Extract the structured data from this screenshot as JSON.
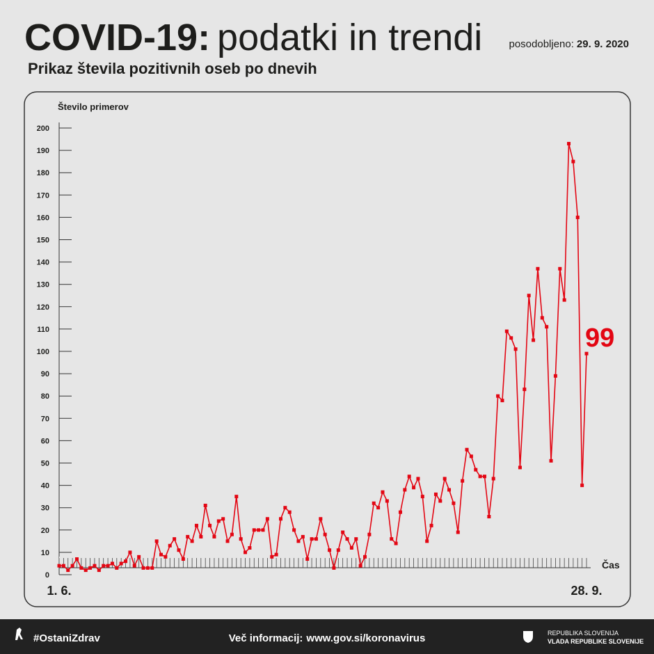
{
  "header": {
    "title_bold": "COVID-19:",
    "title_rest": "podatki in trendi",
    "updated_label": "posodobljeno:",
    "updated_date": "29. 9. 2020",
    "subtitle": "Prikaz števila pozitivnih oseb po dnevih"
  },
  "chart_data": {
    "type": "line",
    "y_label": "Število primerov",
    "x_label": "Čas",
    "color": "#e30613",
    "categories": [
      "1. 6.",
      null,
      null,
      null,
      null,
      null,
      null,
      null,
      null,
      null,
      null,
      null,
      null,
      null,
      null,
      null,
      null,
      null,
      null,
      null,
      null,
      null,
      null,
      null,
      null,
      null,
      null,
      null,
      null,
      null,
      null,
      null,
      null,
      null,
      null,
      null,
      null,
      null,
      null,
      null,
      null,
      null,
      null,
      null,
      null,
      null,
      null,
      null,
      null,
      null,
      null,
      null,
      null,
      null,
      null,
      null,
      null,
      null,
      null,
      null,
      null,
      null,
      null,
      null,
      null,
      null,
      null,
      null,
      null,
      null,
      null,
      null,
      null,
      null,
      null,
      null,
      null,
      null,
      null,
      null,
      null,
      null,
      null,
      null,
      null,
      null,
      null,
      null,
      null,
      null,
      null,
      null,
      null,
      null,
      null,
      null,
      null,
      null,
      null,
      null,
      null,
      null,
      null,
      null,
      null,
      null,
      null,
      null,
      null,
      null,
      null,
      null,
      null,
      null,
      null,
      null,
      null,
      null,
      null,
      "28. 9."
    ],
    "values": [
      4,
      4,
      2,
      4,
      7,
      3,
      2,
      3,
      4,
      2,
      4,
      4,
      5,
      3,
      5,
      6,
      10,
      4,
      8,
      3,
      3,
      3,
      15,
      9,
      8,
      13,
      16,
      11,
      7,
      17,
      15,
      22,
      17,
      31,
      22,
      17,
      24,
      25,
      15,
      18,
      35,
      16,
      10,
      12,
      20,
      20,
      20,
      25,
      8,
      9,
      25,
      30,
      28,
      20,
      15,
      17,
      7,
      16,
      16,
      25,
      18,
      11,
      3,
      11,
      19,
      16,
      12,
      16,
      4,
      8,
      18,
      32,
      30,
      37,
      33,
      16,
      14,
      28,
      38,
      44,
      39,
      43,
      35,
      15,
      22,
      36,
      33,
      43,
      38,
      32,
      19,
      42,
      56,
      53,
      47,
      44,
      44,
      26,
      43,
      80,
      78,
      109,
      106,
      101,
      48,
      83,
      125,
      105,
      137,
      115,
      111,
      51,
      89,
      137,
      123,
      193,
      185,
      160,
      40,
      99
    ],
    "ylim": [
      0,
      200
    ],
    "yticks": [
      0,
      10,
      20,
      30,
      40,
      50,
      60,
      70,
      80,
      90,
      100,
      110,
      120,
      130,
      140,
      150,
      160,
      170,
      180,
      190,
      200
    ]
  },
  "footer": {
    "hashtag": "#OstaniZdrav",
    "info_label": "Več informacij:",
    "url": "www.gov.si/koronavirus",
    "gov_line1": "REPUBLIKA SLOVENIJA",
    "gov_line2": "VLADA REPUBLIKE SLOVENIJE"
  }
}
